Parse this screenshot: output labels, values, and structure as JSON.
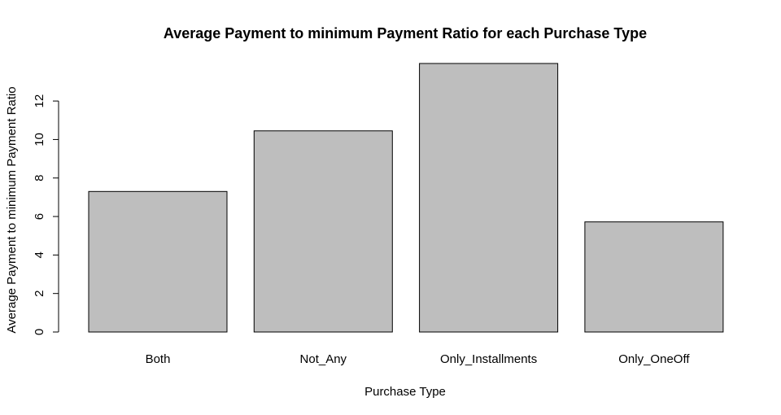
{
  "chart_data": {
    "type": "bar",
    "title": "Average Payment to minimum Payment Ratio for each Purchase Type",
    "xlabel": "Purchase Type",
    "ylabel": "Average Payment to minimum Payment Ratio",
    "categories": [
      "Both",
      "Not_Any",
      "Only_Installments",
      "Only_OneOff"
    ],
    "values": [
      7.3,
      10.45,
      13.95,
      5.72
    ],
    "ylim": [
      0,
      13.95
    ],
    "yticks": [
      "0",
      "2",
      "4",
      "6",
      "8",
      "10",
      "12"
    ],
    "grid": false,
    "bar_color": "#bebebe",
    "bar_border": "#000000"
  }
}
